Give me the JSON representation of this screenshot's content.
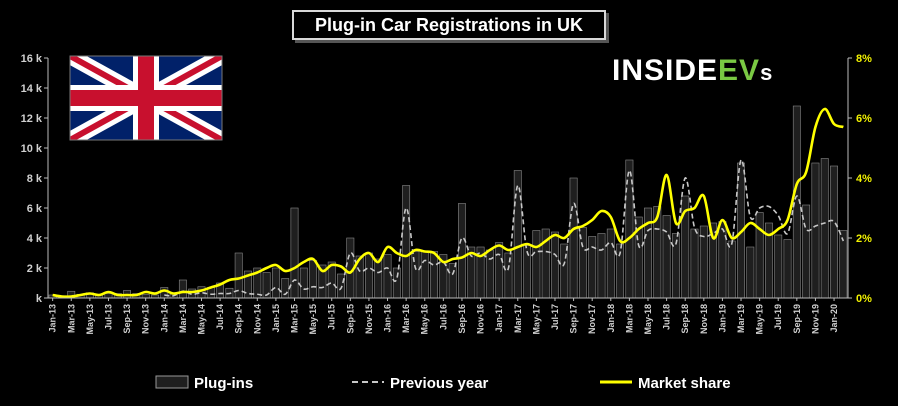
{
  "chart_data": {
    "type": "bar",
    "title": "Plug-in Car Registrations in UK",
    "brand": "INSIDEEVs",
    "brand_parts": [
      "INSIDE",
      "EV",
      "s"
    ],
    "brand_colors": {
      "text": "#ffffff",
      "accent": "#7ac943"
    },
    "flag": "uk-flag",
    "grid": false,
    "legend_position": "bottom",
    "colors": {
      "bars": "#1f1f1f",
      "bar_edge": "#888888",
      "previous_year": "#c8c8c8",
      "market_share": "#ffff00"
    },
    "y_left": {
      "min": 0,
      "max": 16000,
      "ticks": [
        0,
        2000,
        4000,
        6000,
        8000,
        10000,
        12000,
        14000,
        16000
      ],
      "tick_labels": [
        "k",
        "2 k",
        "4 k",
        "6 k",
        "8 k",
        "10 k",
        "12 k",
        "14 k",
        "16 k"
      ]
    },
    "y_right": {
      "min": 0,
      "max": 8,
      "unit": "%",
      "ticks": [
        0,
        2,
        4,
        6,
        8
      ],
      "tick_labels": [
        "0%",
        "2%",
        "4%",
        "6%",
        "8%"
      ]
    },
    "categories": [
      "Jan-13",
      "Feb-13",
      "Mar-13",
      "Apr-13",
      "May-13",
      "Jun-13",
      "Jul-13",
      "Aug-13",
      "Sep-13",
      "Oct-13",
      "Nov-13",
      "Dec-13",
      "Jan-14",
      "Feb-14",
      "Mar-14",
      "Apr-14",
      "May-14",
      "Jun-14",
      "Jul-14",
      "Aug-14",
      "Sep-14",
      "Oct-14",
      "Nov-14",
      "Dec-14",
      "Jan-15",
      "Feb-15",
      "Mar-15",
      "Apr-15",
      "May-15",
      "Jun-15",
      "Jul-15",
      "Aug-15",
      "Sep-15",
      "Oct-15",
      "Nov-15",
      "Dec-15",
      "Jan-16",
      "Feb-16",
      "Mar-16",
      "Apr-16",
      "May-16",
      "Jun-16",
      "Jul-16",
      "Aug-16",
      "Sep-16",
      "Oct-16",
      "Nov-16",
      "Dec-16",
      "Jan-17",
      "Feb-17",
      "Mar-17",
      "Apr-17",
      "May-17",
      "Jun-17",
      "Jul-17",
      "Aug-17",
      "Sep-17",
      "Oct-17",
      "Nov-17",
      "Dec-17",
      "Jan-18",
      "Feb-18",
      "Mar-18",
      "Apr-18",
      "May-18",
      "Jun-18",
      "Jul-18",
      "Aug-18",
      "Sep-18",
      "Oct-18",
      "Nov-18",
      "Dec-18",
      "Jan-19",
      "Feb-19",
      "Mar-19",
      "Apr-19",
      "May-19",
      "Jun-19",
      "Jul-19",
      "Aug-19",
      "Sep-19",
      "Oct-19",
      "Nov-19",
      "Dec-19",
      "Jan-20",
      "Feb-20"
    ],
    "x_tick_labels": [
      "Jan-13",
      "Mar-13",
      "May-13",
      "Jul-13",
      "Sep-13",
      "Nov-13",
      "Jan-14",
      "Mar-14",
      "May-14",
      "Jul-14",
      "Sep-14",
      "Nov-14",
      "Jan-15",
      "Mar-15",
      "May-15",
      "Jul-15",
      "Sep-15",
      "Nov-15",
      "Jan-16",
      "Mar-16",
      "May-16",
      "Jul-16",
      "Sep-16",
      "Nov-16",
      "Jan-17",
      "Mar-17",
      "May-17",
      "Jul-17",
      "Sep-17",
      "Nov-17",
      "Jan-18",
      "Mar-18",
      "May-18",
      "Jul-18",
      "Sep-18",
      "Nov-18",
      "Jan-19",
      "Mar-19",
      "May-19",
      "Jul-19",
      "Sep-19",
      "Nov-19",
      "Jan-20"
    ],
    "series": [
      {
        "name": "Plug-ins",
        "type": "bar",
        "values": [
          200,
          150,
          450,
          250,
          350,
          250,
          300,
          300,
          500,
          300,
          250,
          200,
          700,
          250,
          1200,
          600,
          750,
          700,
          1000,
          650,
          3000,
          1800,
          2000,
          1700,
          2000,
          1300,
          6000,
          2000,
          2500,
          2200,
          2400,
          1600,
          4000,
          2800,
          3000,
          2600,
          2900,
          2000,
          7500,
          3100,
          3100,
          3100,
          2900,
          2300,
          6300,
          3400,
          3400,
          3200,
          3700,
          3000,
          8500,
          3500,
          4500,
          4600,
          4400,
          3600,
          8000,
          4700,
          4100,
          4300,
          4600,
          3600,
          9200,
          5400,
          6000,
          6100,
          5500,
          4300,
          6800,
          4600,
          4800,
          5000,
          5100,
          3800,
          9000,
          3400,
          5700,
          5000,
          4200,
          3900,
          12800,
          6200,
          9000,
          9300,
          8800,
          4500
        ]
      },
      {
        "name": "Previous year",
        "type": "line",
        "style": "dashed",
        "values": [
          null,
          null,
          null,
          null,
          null,
          null,
          null,
          null,
          null,
          null,
          null,
          null,
          200,
          150,
          450,
          250,
          350,
          250,
          300,
          300,
          500,
          300,
          250,
          200,
          700,
          250,
          1200,
          600,
          750,
          700,
          1000,
          650,
          3000,
          1800,
          2000,
          1700,
          2000,
          1300,
          6000,
          2000,
          2500,
          2200,
          2400,
          1600,
          4000,
          2800,
          3000,
          2600,
          2900,
          2000,
          7500,
          3100,
          3100,
          3100,
          2900,
          2300,
          6300,
          3400,
          3400,
          3200,
          3700,
          3000,
          8500,
          3500,
          4500,
          4600,
          4400,
          3600,
          8000,
          4700,
          4100,
          4300,
          4600,
          3600,
          9200,
          5400,
          6000,
          6100,
          5500,
          4300,
          6800,
          4600,
          4800,
          5000,
          5100,
          3800
        ]
      },
      {
        "name": "Market share",
        "type": "line",
        "axis": "right",
        "unit": "%",
        "values": [
          0.1,
          0.05,
          0.05,
          0.1,
          0.15,
          0.1,
          0.2,
          0.1,
          0.1,
          0.1,
          0.2,
          0.15,
          0.25,
          0.15,
          0.2,
          0.2,
          0.25,
          0.35,
          0.45,
          0.6,
          0.65,
          0.75,
          0.85,
          1.0,
          1.1,
          0.9,
          1.0,
          1.2,
          1.3,
          0.9,
          1.1,
          1.05,
          0.85,
          1.3,
          1.5,
          1.2,
          1.7,
          1.5,
          1.4,
          1.6,
          1.55,
          1.5,
          1.2,
          1.3,
          1.35,
          1.5,
          1.4,
          1.6,
          1.75,
          1.6,
          1.7,
          1.8,
          1.7,
          1.9,
          2.1,
          2.0,
          2.3,
          2.4,
          2.6,
          2.9,
          2.7,
          1.9,
          2.0,
          2.3,
          2.5,
          2.7,
          4.1,
          2.5,
          2.9,
          3.0,
          3.4,
          2.0,
          2.6,
          2.0,
          2.2,
          2.5,
          2.3,
          2.1,
          2.3,
          2.6,
          3.8,
          4.2,
          5.7,
          6.3,
          5.8,
          5.7
        ]
      }
    ]
  },
  "legend": {
    "items": [
      "Plug-ins",
      "Previous year",
      "Market share"
    ]
  }
}
